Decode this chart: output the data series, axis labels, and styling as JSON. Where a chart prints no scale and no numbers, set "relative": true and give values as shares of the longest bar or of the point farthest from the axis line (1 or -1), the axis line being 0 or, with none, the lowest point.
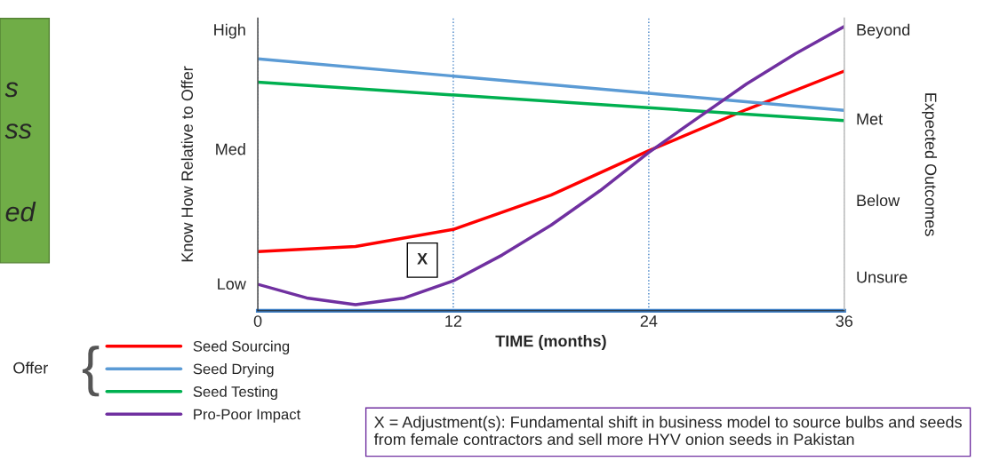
{
  "chart_data": {
    "type": "line",
    "relative": true,
    "xlabel": "TIME (months)",
    "ylabel": "Know How Relative to Offer",
    "y2label": "Expected Outcomes",
    "xlim": [
      0,
      36
    ],
    "xticks": [
      0,
      12,
      24,
      36
    ],
    "grid": "x",
    "legend": "bottom left",
    "marker": "none",
    "line_style": "solid",
    "series": [
      {
        "name": "Seed Sourcing",
        "color": "#ff0000",
        "x": [
          0,
          6,
          12,
          18,
          24,
          30,
          36
        ],
        "values": [
          0.208,
          0.226,
          0.286,
          0.407,
          0.563,
          0.708,
          0.843
        ]
      },
      {
        "name": "Seed Drying",
        "color": "#5b9bd5",
        "x": [
          0,
          36
        ],
        "values": [
          0.886,
          0.705
        ]
      },
      {
        "name": "Seed Testing",
        "color": "#00b050",
        "x": [
          0,
          36
        ],
        "values": [
          0.804,
          0.669
        ]
      },
      {
        "name": "Pro-Poor Impact",
        "color": "#7030a0",
        "x": [
          0,
          3,
          6,
          9,
          12,
          15,
          18,
          21,
          24,
          27,
          30,
          33,
          36
        ],
        "values": [
          0.093,
          0.045,
          0.021,
          0.045,
          0.105,
          0.196,
          0.301,
          0.422,
          0.557,
          0.678,
          0.798,
          0.904,
          1
        ]
      }
    ],
    "annotations": [
      "s",
      "ss",
      "ed",
      "Offer",
      "{",
      "High",
      "Med",
      "Low",
      "Beyond",
      "Met",
      "Below",
      "Unsure",
      {
        "text": "X",
        "x": 10.1,
        "y": 0.178
      },
      "X = Adjustment(s): Fundamental shift in business model to source bulbs and seeds from female contractors and sell more HYV onion seeds in Pakistan"
    ]
  }
}
